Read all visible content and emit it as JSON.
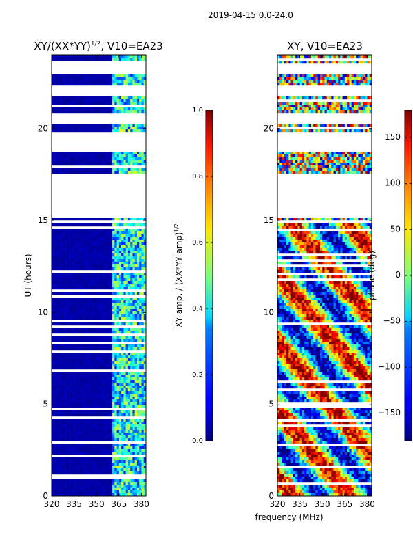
{
  "suptitle": "2019-04-15 0.0-24.0",
  "shared": {
    "ylabel": "UT (hours)",
    "xlabel": "frequency (MHz)"
  },
  "chart_data": [
    {
      "type": "heatmap",
      "title": "XY/(XX*YY)^{1/2}, V10=EA23",
      "title_main": "XY/(XX*YY)",
      "title_sup": "1/2",
      "title_tail": ", V10=EA23",
      "xlabel": "frequency (MHz)",
      "ylabel": "UT (hours)",
      "xlim": [
        320,
        383
      ],
      "ylim": [
        0,
        24
      ],
      "xticks": [
        "320",
        "335",
        "350",
        "365",
        "380"
      ],
      "xtick_values": [
        320,
        335,
        350,
        365,
        380
      ],
      "yticks": [
        "0",
        "5",
        "10",
        "15",
        "20"
      ],
      "ytick_values": [
        0,
        5,
        10,
        15,
        20
      ],
      "gap_ranges_hours": [
        [
          15.2,
          17.5
        ],
        [
          18.7,
          19.8
        ],
        [
          20.3,
          20.8
        ],
        [
          21.8,
          22.3
        ],
        [
          23.0,
          23.5
        ]
      ],
      "colorbar": {
        "label": "XY amp. / (XX*YY amp)^{1/2}",
        "label_main": "XY amp. / (XX*YY amp)",
        "label_sup": "1/2",
        "range": [
          0.0,
          1.0
        ],
        "ticks": [
          "0.0",
          "0.2",
          "0.4",
          "0.6",
          "0.8",
          "1.0"
        ],
        "tick_values": [
          0.0,
          0.2,
          0.4,
          0.6,
          0.8,
          1.0
        ]
      }
    },
    {
      "type": "heatmap",
      "title": "XY, V10=EA23",
      "xlabel": "frequency (MHz)",
      "ylabel": "",
      "xlim": [
        320,
        383
      ],
      "ylim": [
        0,
        24
      ],
      "xticks": [
        "320",
        "335",
        "350",
        "365",
        "380"
      ],
      "xtick_values": [
        320,
        335,
        350,
        365,
        380
      ],
      "yticks": [
        "0",
        "5",
        "10",
        "15",
        "20"
      ],
      "ytick_values": [
        0,
        5,
        10,
        15,
        20
      ],
      "gap_ranges_hours": [
        [
          15.2,
          17.5
        ],
        [
          18.7,
          19.8
        ],
        [
          20.3,
          20.8
        ],
        [
          21.8,
          22.3
        ],
        [
          23.0,
          23.5
        ]
      ],
      "colorbar": {
        "label": "phase (deg)",
        "range": [
          -180,
          180
        ],
        "ticks": [
          "−150",
          "−100",
          "−50",
          "0",
          "50",
          "100",
          "150"
        ],
        "tick_values": [
          -150,
          -100,
          -50,
          0,
          50,
          100,
          150
        ]
      }
    }
  ],
  "colors": {
    "jet_low": "#00007f",
    "jet_high": "#7f0000"
  }
}
